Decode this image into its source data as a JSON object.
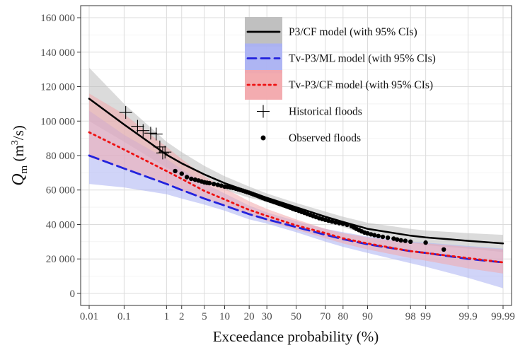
{
  "chart_data": {
    "type": "line",
    "xlabel": "Exceedance probability (%)",
    "ylabel_main": "Q",
    "ylabel_sub": "m",
    "ylabel_unit_open": " (m",
    "ylabel_unit_exp": "3",
    "ylabel_unit_close": "/s)",
    "xscale": "normal-probability",
    "xlim": [
      0.01,
      99.99
    ],
    "ylim": [
      -7000,
      167000
    ],
    "grid": true,
    "legend_position": "top-right",
    "x_ticks": [
      0.01,
      0.1,
      1,
      2,
      5,
      10,
      20,
      30,
      50,
      70,
      80,
      90,
      98,
      99,
      99.9,
      99.99
    ],
    "x_tick_labels": [
      "0.01",
      "0.1",
      "1",
      "2",
      "5",
      "10",
      "20",
      "30",
      "50",
      "70",
      "80",
      "90",
      "98",
      "99",
      "99.9",
      "99.99"
    ],
    "y_ticks": [
      0,
      20000,
      40000,
      60000,
      80000,
      100000,
      120000,
      140000,
      160000
    ],
    "y_tick_labels": [
      "0",
      "20 000",
      "40 000",
      "60 000",
      "80 000",
      "100 000",
      "120 000",
      "140 000",
      "160 000"
    ],
    "series": [
      {
        "name": "P3/CF model (with 95% CIs)",
        "color": "#000000",
        "band_color": "#bdbdbd",
        "line_style": "solid",
        "x": [
          0.01,
          0.1,
          1,
          2,
          5,
          10,
          20,
          30,
          50,
          70,
          80,
          90,
          98,
          99,
          99.9,
          99.99
        ],
        "y": [
          113000,
          98000,
          80500,
          75500,
          69000,
          64000,
          59000,
          55500,
          50000,
          44500,
          41500,
          37500,
          33500,
          32500,
          30500,
          29000
        ],
        "lower": [
          100000,
          88000,
          73000,
          69000,
          64000,
          60000,
          55500,
          53000,
          47500,
          41500,
          38500,
          34000,
          29500,
          28000,
          26000,
          24000
        ],
        "upper": [
          131000,
          110000,
          88000,
          82000,
          74000,
          68000,
          62000,
          58000,
          52500,
          47500,
          44500,
          41000,
          37500,
          36500,
          35000,
          34000
        ]
      },
      {
        "name": "Tv-P3/ML model (with 95% CIs)",
        "color": "#2222dd",
        "band_color": "#aab1f2",
        "line_style": "dashed",
        "x": [
          0.01,
          0.1,
          1,
          2,
          5,
          10,
          20,
          30,
          50,
          70,
          80,
          90,
          98,
          99,
          99.9,
          99.99
        ],
        "y": [
          80000,
          72500,
          63500,
          60000,
          55000,
          51000,
          46000,
          43000,
          38500,
          34000,
          31500,
          28500,
          24500,
          23500,
          20000,
          18000
        ],
        "lower": [
          63500,
          61500,
          57500,
          55000,
          51500,
          48000,
          43000,
          40500,
          35500,
          30000,
          27000,
          23500,
          17500,
          15500,
          9000,
          3000
        ],
        "upper": [
          106000,
          92000,
          78000,
          72000,
          64000,
          58000,
          51000,
          47000,
          42000,
          37500,
          35500,
          33000,
          30000,
          29500,
          27500,
          26000
        ]
      },
      {
        "name": "Tv-P3/CF model (with 95% CIs)",
        "color": "#ee1111",
        "band_color": "#f2a8ac",
        "line_style": "dotted",
        "x": [
          0.01,
          0.1,
          1,
          2,
          5,
          10,
          20,
          30,
          50,
          70,
          80,
          90,
          98,
          99,
          99.9,
          99.99
        ],
        "y": [
          93500,
          83500,
          71000,
          66500,
          59500,
          54500,
          48500,
          45000,
          39500,
          35000,
          32000,
          29000,
          24500,
          23500,
          20500,
          18000
        ],
        "lower": [
          79000,
          72500,
          63500,
          59500,
          55000,
          51000,
          45500,
          42000,
          37000,
          32000,
          29000,
          25500,
          20500,
          19000,
          14500,
          11500
        ],
        "upper": [
          116000,
          104000,
          85000,
          78000,
          68000,
          61000,
          53500,
          49000,
          43000,
          37500,
          35000,
          32500,
          29500,
          29000,
          27000,
          25500
        ]
      }
    ],
    "historical_floods": {
      "name": "Historical floods",
      "x": [
        0.11,
        0.22,
        0.3,
        0.45,
        0.6,
        0.72,
        0.83,
        0.93
      ],
      "y": [
        105000,
        97000,
        94500,
        93000,
        92500,
        85000,
        81500,
        82000
      ]
    },
    "observed_floods": {
      "name": "Observed floods",
      "x": [
        1.5,
        2,
        2.5,
        3,
        3.5,
        4,
        4.5,
        5,
        5.5,
        6,
        7,
        8,
        9,
        10,
        11,
        12,
        13,
        14,
        15,
        16,
        17,
        18,
        19,
        20,
        21,
        22,
        23,
        24,
        25,
        26,
        27,
        28,
        29,
        30,
        31,
        32,
        33,
        34,
        35,
        36,
        37,
        38,
        39,
        40,
        41,
        42,
        43,
        44,
        45,
        46,
        47,
        48,
        49,
        50,
        52,
        54,
        56,
        58,
        60,
        62,
        64,
        66,
        68,
        70,
        72,
        74,
        76,
        78,
        80,
        82,
        84,
        85,
        86,
        87,
        88,
        89,
        90,
        91,
        92,
        93,
        94,
        95,
        96,
        96.5,
        97,
        97.5,
        98,
        99,
        99.6
      ],
      "y": [
        71000,
        69500,
        67500,
        66500,
        66000,
        65500,
        65000,
        64500,
        64200,
        64000,
        63500,
        63000,
        62500,
        62000,
        61800,
        61500,
        61200,
        60800,
        60400,
        60000,
        59600,
        59200,
        58800,
        58400,
        58000,
        57600,
        57200,
        56800,
        56400,
        56000,
        55600,
        55200,
        54800,
        54500,
        54200,
        53900,
        53600,
        53300,
        53000,
        52700,
        52400,
        52100,
        51800,
        51500,
        51200,
        50900,
        50600,
        50300,
        50000,
        49700,
        49400,
        49100,
        48800,
        48500,
        47900,
        47300,
        46700,
        46100,
        45500,
        44900,
        44300,
        43700,
        43200,
        42700,
        42200,
        41700,
        41200,
        40800,
        40400,
        39800,
        39000,
        38300,
        37500,
        36800,
        36000,
        35300,
        34800,
        34300,
        33800,
        33300,
        32800,
        32300,
        31800,
        31300,
        30800,
        30500,
        30000,
        29500,
        25500
      ]
    }
  }
}
